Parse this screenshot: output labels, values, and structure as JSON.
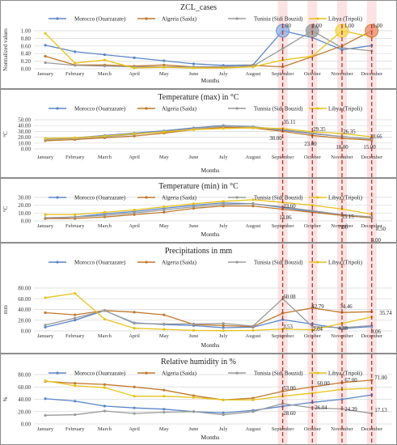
{
  "colors": {
    "morocco": "#5b86c9",
    "algeria": "#c0792c",
    "tunisia": "#9a9a9a",
    "libya": "#e7c21b",
    "highlight_band": "#fbe3e3",
    "highlight_line": "#b8342c",
    "grid": "#d9d9d9",
    "panel_border": "#8c8c8c",
    "dot_morocco": "#8fb0e6",
    "dot_algeria": "#ee8a6a",
    "dot_libya": "#f4da55"
  },
  "chart_data": [
    {
      "id": "zcl",
      "type": "line",
      "title": "ZCL_cases",
      "xlabel": "Months",
      "ylabel": "Normalized values",
      "ylim": [
        0,
        1
      ],
      "ytick_labels": [
        "0.00",
        "0.20",
        "0.40",
        "0.60",
        "0.80",
        "1.00"
      ],
      "ytick_values": [
        0,
        0.2,
        0.4,
        0.6,
        0.8,
        1.0
      ],
      "categories": [
        "January",
        "February",
        "March",
        "April",
        "May",
        "June",
        "July",
        "August",
        "September",
        "October",
        "November",
        "December"
      ],
      "series": [
        {
          "name": "Morocco (Ouarzazate)",
          "key": "morocco",
          "values": [
            0.62,
            0.45,
            0.37,
            0.29,
            0.21,
            0.13,
            0.09,
            0.1,
            1.0,
            0.82,
            0.5,
            0.61
          ]
        },
        {
          "name": "Algeria (Saida)",
          "key": "algeria",
          "values": [
            0.33,
            0.1,
            0.1,
            0.07,
            0.1,
            0.05,
            0.04,
            0.09,
            0.05,
            0.32,
            0.6,
            1.0
          ]
        },
        {
          "name": "Tunisia (Sidi Bouzid)",
          "key": "tunisia",
          "values": [
            0.16,
            0.09,
            0.07,
            0.05,
            0.05,
            0.05,
            0.06,
            0.07,
            0.53,
            1.0,
            0.55,
            0.47
          ]
        },
        {
          "name": "Libya (Tripoli)",
          "key": "libya",
          "values": [
            0.93,
            0.15,
            0.23,
            0.02,
            0.04,
            0.02,
            0.02,
            0.05,
            0.23,
            0.33,
            1.0,
            0.84
          ]
        }
      ],
      "annotations": [
        {
          "text": "1.00",
          "month_index": 8,
          "value": 1.0
        },
        {
          "text": "1.00",
          "month_index": 9,
          "value": 1.0
        },
        {
          "text": "1.00",
          "month_index": 10,
          "value": 1.0
        },
        {
          "text": "1.00",
          "month_index": 11,
          "value": 1.0
        }
      ],
      "peak_markers": [
        {
          "series_key": "morocco",
          "month_index": 8
        },
        {
          "series_key": "tunisia",
          "month_index": 9
        },
        {
          "series_key": "libya",
          "month_index": 10
        },
        {
          "series_key": "algeria",
          "month_index": 11
        }
      ]
    },
    {
      "id": "tmax",
      "type": "line",
      "title": "Temperature (max) in °C",
      "xlabel": "Months",
      "ylabel": "°C",
      "ylim": [
        0,
        50
      ],
      "ytick_labels": [
        "0.00",
        "10.00",
        "20.00",
        "30.00",
        "40.00",
        "50.00"
      ],
      "ytick_values": [
        0,
        10,
        20,
        30,
        40,
        50
      ],
      "categories": [
        "January",
        "February",
        "March",
        "April",
        "May",
        "June",
        "July",
        "August",
        "September",
        "October",
        "November",
        "December"
      ],
      "series": [
        {
          "name": "Morocco (Ouarzazate)",
          "key": "morocco",
          "values": [
            17.0,
            19.0,
            23.0,
            27.0,
            31.0,
            36.0,
            40.0,
            38.0,
            32.0,
            26.0,
            21.0,
            17.0
          ]
        },
        {
          "name": "Algeria (Saida)",
          "key": "algeria",
          "values": [
            14.0,
            16.0,
            19.0,
            22.0,
            27.0,
            33.0,
            37.0,
            36.0,
            30.0,
            23.0,
            18.0,
            15.0
          ]
        },
        {
          "name": "Tunisia (Sidi Bouzid)",
          "key": "tunisia",
          "values": [
            16.0,
            18.0,
            21.0,
            25.0,
            30.0,
            35.0,
            39.0,
            38.0,
            33.0,
            27.0,
            21.0,
            17.0
          ]
        },
        {
          "name": "Libya (Tripoli)",
          "key": "libya",
          "values": [
            18.0,
            19.0,
            22.0,
            26.0,
            29.0,
            33.0,
            35.0,
            36.0,
            35.11,
            29.35,
            26.35,
            20.66
          ]
        }
      ],
      "annotations": [
        {
          "text": "35.11",
          "month_index": 8,
          "value": 35.11
        },
        {
          "text": "30.00",
          "month_index": 8,
          "value": 30.0
        },
        {
          "text": "29.35",
          "month_index": 9,
          "value": 29.35
        },
        {
          "text": "23.00",
          "month_index": 9,
          "value": 23.0
        },
        {
          "text": "26.35",
          "month_index": 10,
          "value": 26.35
        },
        {
          "text": "18.00",
          "month_index": 10,
          "value": 18.0
        },
        {
          "text": "20.66",
          "month_index": 11,
          "value": 20.66
        },
        {
          "text": "15.00",
          "month_index": 11,
          "value": 15.0
        }
      ]
    },
    {
      "id": "tmin",
      "type": "line",
      "title": "Temperature (min) in °C",
      "xlabel": "Months",
      "ylabel": "°C",
      "ylim": [
        0,
        30
      ],
      "ytick_labels": [
        "0.00",
        "10.00",
        "20.00",
        "30.00"
      ],
      "ytick_values": [
        0,
        10,
        20,
        30
      ],
      "categories": [
        "January",
        "February",
        "March",
        "April",
        "May",
        "June",
        "July",
        "August",
        "September",
        "October",
        "November",
        "December"
      ],
      "series": [
        {
          "name": "Morocco (Ouarzazate)",
          "key": "morocco",
          "values": [
            3.0,
            5.0,
            9.0,
            12.0,
            16.0,
            20.0,
            23.0,
            22.0,
            17.0,
            12.0,
            7.0,
            4.0
          ]
        },
        {
          "name": "Algeria (Saida)",
          "key": "algeria",
          "values": [
            3.0,
            3.0,
            5.0,
            8.0,
            11.0,
            16.0,
            19.0,
            19.0,
            14.86,
            11.0,
            7.0,
            4.0
          ]
        },
        {
          "name": "Tunisia (Sidi Bouzid)",
          "key": "tunisia",
          "values": [
            4.0,
            5.0,
            7.0,
            10.0,
            14.0,
            18.0,
            21.0,
            22.0,
            18.0,
            13.0,
            8.0,
            5.0
          ]
        },
        {
          "name": "Libya (Tripoli)",
          "key": "libya",
          "values": [
            8.0,
            8.0,
            11.0,
            14.0,
            18.0,
            22.0,
            25.0,
            27.0,
            23.6,
            20.0,
            15.15,
            8.5
          ]
        }
      ],
      "annotations": [
        {
          "text": "23.60",
          "month_index": 8,
          "value": 23.6
        },
        {
          "text": "14.86",
          "month_index": 8,
          "value": 14.86
        },
        {
          "text": "15.15",
          "month_index": 10,
          "value": 15.15
        },
        {
          "text": "7.00",
          "month_index": 10,
          "value": 7.0
        },
        {
          "text": "8.50",
          "month_index": 11,
          "value": 8.5
        },
        {
          "text": "4.00",
          "month_index": 11,
          "value": 4.0
        }
      ]
    },
    {
      "id": "precip",
      "type": "line",
      "title": "Precipitations in mm",
      "xlabel": "Months",
      "ylabel": "mm",
      "ylim": [
        0,
        80
      ],
      "ytick_labels": [
        "0.00",
        "20.00",
        "40.00",
        "60.00",
        "80.00"
      ],
      "ytick_values": [
        0,
        20,
        40,
        60,
        80
      ],
      "categories": [
        "January",
        "February",
        "March",
        "April",
        "May",
        "June",
        "July",
        "August",
        "September",
        "October",
        "November",
        "December"
      ],
      "series": [
        {
          "name": "Morocco (Ouarzazate)",
          "key": "morocco",
          "values": [
            7.0,
            20.0,
            38.0,
            15.0,
            12.0,
            10.0,
            6.0,
            7.0,
            21.0,
            12.79,
            4.38,
            8.06
          ]
        },
        {
          "name": "Algeria (Saida)",
          "key": "algeria",
          "values": [
            34.0,
            30.0,
            38.0,
            35.0,
            30.0,
            12.0,
            10.0,
            8.0,
            33.0,
            42.79,
            34.46,
            35.74
          ]
        },
        {
          "name": "Tunisia (Sidi Bouzid)",
          "key": "tunisia",
          "values": [
            11.0,
            24.0,
            38.0,
            14.0,
            13.0,
            13.0,
            14.0,
            9.0,
            60.08,
            8.0,
            6.0,
            10.0
          ]
        },
        {
          "name": "Libya (Tripoli)",
          "key": "libya",
          "values": [
            62.0,
            70.0,
            22.0,
            5.0,
            3.0,
            1.0,
            0.5,
            1.0,
            3.53,
            2.04,
            14.0,
            26.0
          ]
        }
      ],
      "annotations": [
        {
          "text": "60.08",
          "month_index": 8,
          "value": 60.08
        },
        {
          "text": "3.53",
          "month_index": 8,
          "value": 3.53
        },
        {
          "text": "42.79",
          "month_index": 9,
          "value": 42.79
        },
        {
          "text": "2.04",
          "month_index": 9,
          "value": 2.04
        },
        {
          "text": "34.46",
          "month_index": 10,
          "value": 34.46
        },
        {
          "text": "4.38",
          "month_index": 10,
          "value": 4.38
        },
        {
          "text": "35.74",
          "month_index": 11,
          "value": 35.74
        },
        {
          "text": "8.06",
          "month_index": 11,
          "value": 8.06
        }
      ]
    },
    {
      "id": "rh",
      "type": "line",
      "title": "Relative humidity in %",
      "xlabel": "Months",
      "ylabel": "%",
      "ylim": [
        0,
        80
      ],
      "ytick_labels": [
        "0.00",
        "20.00",
        "40.00",
        "60.00",
        "80.00"
      ],
      "ytick_values": [
        0,
        20,
        40,
        60,
        80
      ],
      "categories": [
        "January",
        "February",
        "March",
        "April",
        "May",
        "June",
        "July",
        "August",
        "September",
        "October",
        "November",
        "December"
      ],
      "series": [
        {
          "name": "Morocco (Ouarzazate)",
          "key": "morocco",
          "values": [
            41.0,
            37.0,
            29.0,
            26.0,
            24.0,
            20.0,
            18.0,
            22.0,
            28.6,
            35.0,
            40.0,
            47.0
          ]
        },
        {
          "name": "Algeria (Saida)",
          "key": "algeria",
          "values": [
            69.0,
            66.0,
            64.0,
            60.0,
            55.0,
            46.0,
            39.0,
            42.0,
            53.0,
            60.0,
            67.0,
            71.0
          ]
        },
        {
          "name": "Tunisia (Sidi Bouzid)",
          "key": "tunisia",
          "values": [
            14.0,
            15.0,
            21.0,
            17.0,
            19.0,
            20.0,
            15.0,
            20.0,
            33.0,
            26.04,
            24.39,
            17.13
          ]
        },
        {
          "name": "Libya (Tripoli)",
          "key": "libya",
          "values": [
            70.0,
            62.0,
            59.0,
            45.0,
            45.0,
            43.0,
            39.0,
            39.0,
            45.0,
            50.0,
            56.0,
            58.0
          ]
        }
      ],
      "annotations": [
        {
          "text": "53.00",
          "month_index": 8,
          "value": 53.0
        },
        {
          "text": "28.60",
          "month_index": 8,
          "value": 28.6
        },
        {
          "text": "60.00",
          "month_index": 9,
          "value": 60.0
        },
        {
          "text": "26.04",
          "month_index": 9,
          "value": 26.04
        },
        {
          "text": "67.00",
          "month_index": 10,
          "value": 67.0
        },
        {
          "text": "24.39",
          "month_index": 10,
          "value": 24.39
        },
        {
          "text": "71.00",
          "month_index": 11,
          "value": 71.0
        },
        {
          "text": "17.13",
          "month_index": 11,
          "value": 17.13
        }
      ]
    }
  ]
}
